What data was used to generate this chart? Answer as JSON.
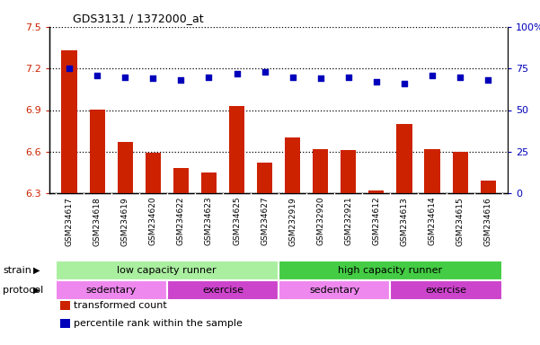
{
  "title": "GDS3131 / 1372000_at",
  "samples": [
    "GSM234617",
    "GSM234618",
    "GSM234619",
    "GSM234620",
    "GSM234622",
    "GSM234623",
    "GSM234625",
    "GSM234627",
    "GSM232919",
    "GSM232920",
    "GSM232921",
    "GSM234612",
    "GSM234613",
    "GSM234614",
    "GSM234615",
    "GSM234616"
  ],
  "transformed_count": [
    7.33,
    6.9,
    6.67,
    6.59,
    6.48,
    6.45,
    6.93,
    6.52,
    6.7,
    6.62,
    6.61,
    6.32,
    6.8,
    6.62,
    6.6,
    6.39
  ],
  "percentile_rank": [
    75,
    71,
    70,
    69,
    68,
    70,
    72,
    73,
    70,
    69,
    70,
    67,
    66,
    71,
    70,
    68
  ],
  "ylim_left": [
    6.3,
    7.5
  ],
  "ylim_right": [
    0,
    100
  ],
  "bar_color": "#cc2200",
  "dot_color": "#0000bb",
  "bg_color": "#ffffff",
  "xticklabel_bg": "#d8d8d8",
  "strain_groups": [
    {
      "label": "low capacity runner",
      "start": 0,
      "end": 8,
      "color": "#aaeea0"
    },
    {
      "label": "high capacity runner",
      "start": 8,
      "end": 16,
      "color": "#44cc44"
    }
  ],
  "protocol_groups": [
    {
      "label": "sedentary",
      "start": 0,
      "end": 4,
      "color": "#ee88ee"
    },
    {
      "label": "exercise",
      "start": 4,
      "end": 8,
      "color": "#cc44cc"
    },
    {
      "label": "sedentary",
      "start": 8,
      "end": 12,
      "color": "#ee88ee"
    },
    {
      "label": "exercise",
      "start": 12,
      "end": 16,
      "color": "#cc44cc"
    }
  ],
  "left_yticks": [
    6.3,
    6.6,
    6.9,
    7.2,
    7.5
  ],
  "right_yticks": [
    0,
    25,
    50,
    75,
    100
  ],
  "legend_items": [
    {
      "label": "transformed count",
      "color": "#cc2200"
    },
    {
      "label": "percentile rank within the sample",
      "color": "#0000bb"
    }
  ]
}
